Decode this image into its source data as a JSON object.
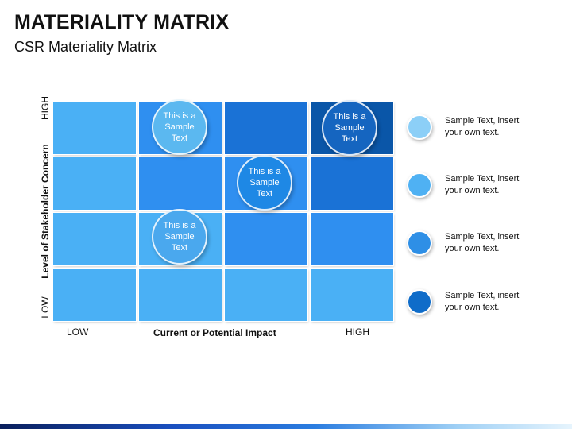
{
  "header": {
    "title": "MATERIALITY MATRIX",
    "subtitle": "CSR Materiality Matrix"
  },
  "axes": {
    "y_label": "Level of Stakeholder Concern",
    "y_high": "HIGH",
    "y_low": "LOW",
    "x_label": "Current or Potential Impact",
    "x_low": "LOW",
    "x_high": "HIGH"
  },
  "bubbles": [
    {
      "text": "This is a Sample Text",
      "color": "#5bb8f0"
    },
    {
      "text": "This is a Sample Text",
      "color": "#1e88e5"
    },
    {
      "text": "This is a Sample Text",
      "color": "#1565c0"
    },
    {
      "text": "This is a Sample Text",
      "color": "#4aa8ee"
    }
  ],
  "legend": [
    {
      "text": "Sample Text, insert your own text.",
      "color": "#8ccff7"
    },
    {
      "text": "Sample Text, insert your own text.",
      "color": "#4fb1f3"
    },
    {
      "text": "Sample Text, insert your own text.",
      "color": "#2e8fe6"
    },
    {
      "text": "Sample Text, insert your own text.",
      "color": "#0f6cc9"
    }
  ],
  "colors": {
    "light": "#4ab0f5",
    "medium": "#2f8ff0",
    "dark": "#1a72d6",
    "darkest": "#0a56a8"
  }
}
